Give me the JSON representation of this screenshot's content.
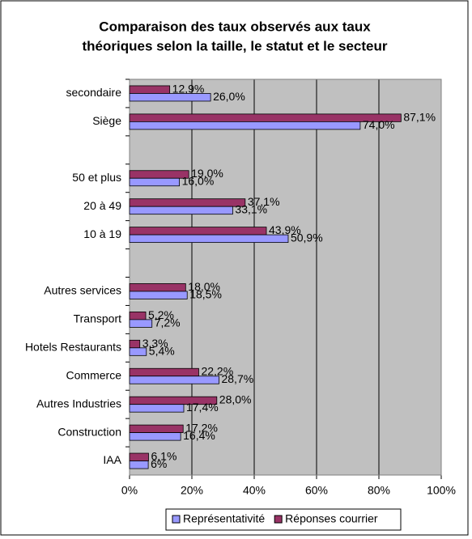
{
  "chart_data": {
    "type": "hbar",
    "title": "Comparaison des taux observés aux taux",
    "subtitle": "théoriques selon la taille, le statut et le secteur",
    "categories": [
      "secondaire",
      "Siège",
      null,
      "50 et plus",
      "20 à 49",
      "10 à 19",
      null,
      "Autres services",
      "Transport",
      "Hotels Restaurants",
      "Commerce",
      "Autres Industries",
      "Construction",
      "IAA"
    ],
    "series": [
      {
        "name": "Représentativité",
        "color": "#9999ff",
        "values": [
          26,
          74,
          null,
          16,
          33.1,
          50.9,
          null,
          18.5,
          7.2,
          5.4,
          28.7,
          17.4,
          16.4,
          6
        ],
        "value_labels": [
          "26,0%",
          "74,0%",
          null,
          "16,0%",
          "33,1%",
          "50,9%",
          null,
          "18,5%",
          "7,2%",
          "5,4%",
          "28,7%",
          "17,4%",
          "16,4%",
          "6%"
        ]
      },
      {
        "name": "Réponses courrier",
        "color": "#993366",
        "values": [
          12.9,
          87.1,
          null,
          19,
          37.1,
          43.9,
          null,
          18,
          5.2,
          3.3,
          22.2,
          28,
          17.2,
          6.1
        ],
        "value_labels": [
          "12,9%",
          "87,1%",
          null,
          "19,0%",
          "37,1%",
          "43,9%",
          null,
          "18,0%",
          "5,2%",
          "3,3%",
          "22,2%",
          "28,0%",
          "17,2%",
          "6,1%"
        ]
      }
    ],
    "xlim": [
      0,
      100
    ],
    "xticks": [
      {
        "value": 0,
        "label": "0%"
      },
      {
        "value": 20,
        "label": "20%"
      },
      {
        "value": 40,
        "label": "40%"
      },
      {
        "value": 60,
        "label": "60%"
      },
      {
        "value": 80,
        "label": "80%"
      },
      {
        "value": 100,
        "label": "100%"
      }
    ],
    "grid": true
  }
}
